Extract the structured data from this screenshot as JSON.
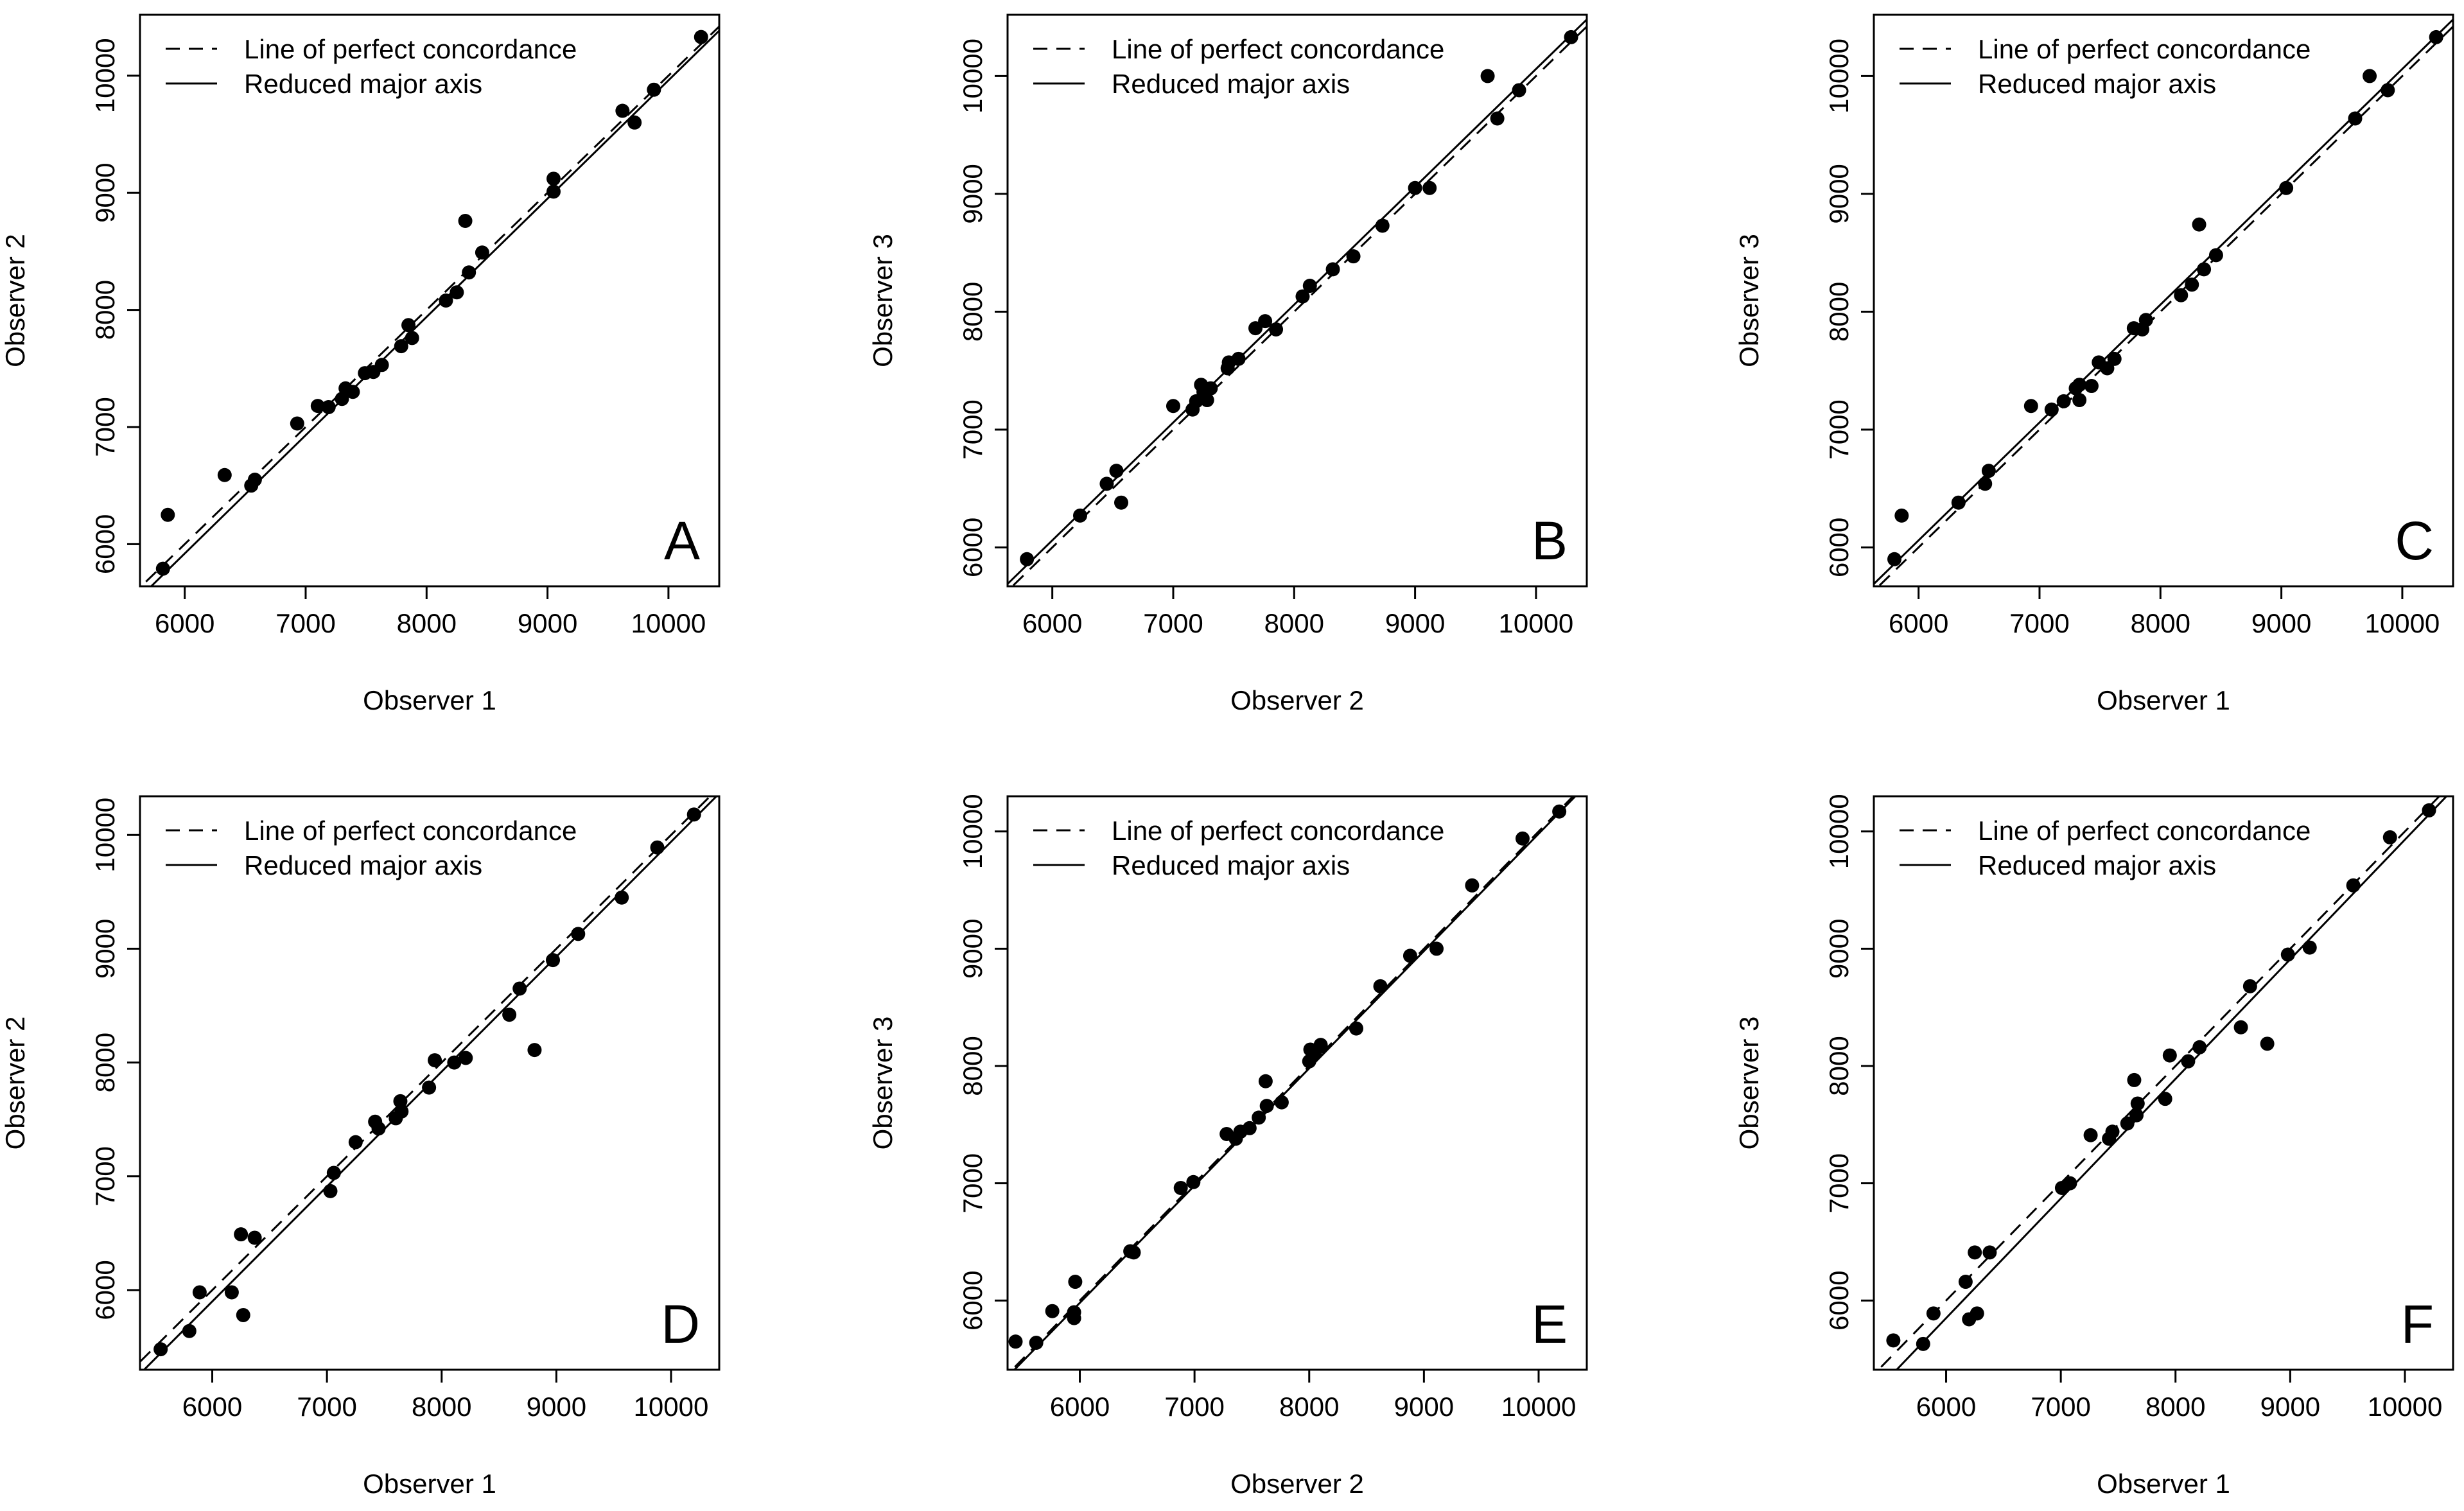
{
  "legend": {
    "concordance_label": "Line of perfect concordance",
    "rma_label": "Reduced major axis"
  },
  "chart_data": [
    {
      "type": "scatter",
      "panel": "A",
      "xlabel": "Observer 1",
      "ylabel": "Observer 2",
      "xlim": [
        5630,
        10420
      ],
      "ylim": [
        5640,
        10520
      ],
      "xticks": [
        6000,
        7000,
        8000,
        9000,
        10000
      ],
      "yticks": [
        6000,
        7000,
        8000,
        9000,
        10000
      ],
      "rma": {
        "slope": 1.01,
        "intercept": -140
      },
      "points": [
        [
          5820,
          5790
        ],
        [
          5860,
          6250
        ],
        [
          6330,
          6590
        ],
        [
          6550,
          6500
        ],
        [
          6580,
          6550
        ],
        [
          6930,
          7030
        ],
        [
          7100,
          7180
        ],
        [
          7190,
          7170
        ],
        [
          7300,
          7240
        ],
        [
          7330,
          7330
        ],
        [
          7390,
          7300
        ],
        [
          7490,
          7460
        ],
        [
          7560,
          7470
        ],
        [
          7630,
          7530
        ],
        [
          7790,
          7690
        ],
        [
          7850,
          7870
        ],
        [
          7880,
          7760
        ],
        [
          8160,
          8080
        ],
        [
          8250,
          8150
        ],
        [
          8320,
          8760
        ],
        [
          8350,
          8320
        ],
        [
          8460,
          8490
        ],
        [
          9050,
          9010
        ],
        [
          9050,
          9120
        ],
        [
          9620,
          9700
        ],
        [
          9720,
          9600
        ],
        [
          9880,
          9880
        ],
        [
          10270,
          10330
        ]
      ]
    },
    {
      "type": "scatter",
      "panel": "B",
      "xlabel": "Observer 2",
      "ylabel": "Observer 3",
      "xlim": [
        5630,
        10420
      ],
      "ylim": [
        5670,
        10520
      ],
      "xticks": [
        6000,
        7000,
        8000,
        9000,
        10000
      ],
      "yticks": [
        6000,
        7000,
        8000,
        9000,
        10000
      ],
      "rma": {
        "slope": 1.0,
        "intercept": 60
      },
      "points": [
        [
          5790,
          5900
        ],
        [
          6230,
          6270
        ],
        [
          6450,
          6540
        ],
        [
          6530,
          6650
        ],
        [
          6570,
          6380
        ],
        [
          7000,
          7200
        ],
        [
          7160,
          7170
        ],
        [
          7190,
          7240
        ],
        [
          7230,
          7380
        ],
        [
          7250,
          7320
        ],
        [
          7280,
          7250
        ],
        [
          7310,
          7350
        ],
        [
          7450,
          7520
        ],
        [
          7460,
          7570
        ],
        [
          7540,
          7600
        ],
        [
          7680,
          7860
        ],
        [
          7760,
          7920
        ],
        [
          7850,
          7850
        ],
        [
          8070,
          8130
        ],
        [
          8130,
          8220
        ],
        [
          8320,
          8360
        ],
        [
          8490,
          8470
        ],
        [
          8730,
          8730
        ],
        [
          9000,
          9050
        ],
        [
          9120,
          9050
        ],
        [
          9600,
          10000
        ],
        [
          9680,
          9640
        ],
        [
          9860,
          9880
        ],
        [
          10290,
          10330
        ]
      ]
    },
    {
      "type": "scatter",
      "panel": "C",
      "xlabel": "Observer 1",
      "ylabel": "Observer 3",
      "xlim": [
        5630,
        10420
      ],
      "ylim": [
        5670,
        10520
      ],
      "xticks": [
        6000,
        7000,
        8000,
        9000,
        10000
      ],
      "yticks": [
        6000,
        7000,
        8000,
        9000,
        10000
      ],
      "rma": {
        "slope": 1.0,
        "intercept": 60
      },
      "points": [
        [
          5800,
          5900
        ],
        [
          5860,
          6270
        ],
        [
          6330,
          6380
        ],
        [
          6550,
          6540
        ],
        [
          6580,
          6650
        ],
        [
          6930,
          7200
        ],
        [
          7100,
          7170
        ],
        [
          7200,
          7240
        ],
        [
          7300,
          7350
        ],
        [
          7330,
          7250
        ],
        [
          7330,
          7380
        ],
        [
          7430,
          7370
        ],
        [
          7490,
          7570
        ],
        [
          7560,
          7520
        ],
        [
          7620,
          7600
        ],
        [
          7780,
          7860
        ],
        [
          7850,
          7850
        ],
        [
          7880,
          7930
        ],
        [
          8170,
          8140
        ],
        [
          8260,
          8230
        ],
        [
          8320,
          8740
        ],
        [
          8360,
          8360
        ],
        [
          8460,
          8480
        ],
        [
          9040,
          9050
        ],
        [
          9610,
          9640
        ],
        [
          9730,
          10000
        ],
        [
          9880,
          9880
        ],
        [
          10280,
          10330
        ]
      ]
    },
    {
      "type": "scatter",
      "panel": "D",
      "xlabel": "Observer 1",
      "ylabel": "Observer 2",
      "xlim": [
        5370,
        10420
      ],
      "ylim": [
        5300,
        10340
      ],
      "xticks": [
        6000,
        7000,
        8000,
        9000,
        10000
      ],
      "yticks": [
        6000,
        7000,
        8000,
        9000,
        10000
      ],
      "rma": {
        "slope": 1.01,
        "intercept": -160
      },
      "points": [
        [
          5550,
          5480
        ],
        [
          5800,
          5640
        ],
        [
          5890,
          5980
        ],
        [
          6170,
          5980
        ],
        [
          6250,
          6490
        ],
        [
          6270,
          5780
        ],
        [
          6370,
          6460
        ],
        [
          7030,
          6870
        ],
        [
          7060,
          7030
        ],
        [
          7250,
          7300
        ],
        [
          7420,
          7480
        ],
        [
          7450,
          7420
        ],
        [
          7600,
          7510
        ],
        [
          7640,
          7660
        ],
        [
          7650,
          7570
        ],
        [
          7890,
          7780
        ],
        [
          7940,
          8020
        ],
        [
          8110,
          8000
        ],
        [
          8210,
          8040
        ],
        [
          8590,
          8420
        ],
        [
          8680,
          8650
        ],
        [
          8810,
          8110
        ],
        [
          8970,
          8900
        ],
        [
          9190,
          9130
        ],
        [
          9570,
          9450
        ],
        [
          9880,
          9890
        ],
        [
          10200,
          10180
        ]
      ]
    },
    {
      "type": "scatter",
      "panel": "E",
      "xlabel": "Observer 2",
      "ylabel": "Observer 3",
      "xlim": [
        5370,
        10420
      ],
      "ylim": [
        5410,
        10300
      ],
      "xticks": [
        6000,
        7000,
        8000,
        9000,
        10000
      ],
      "yticks": [
        6000,
        7000,
        8000,
        9000,
        10000
      ],
      "rma": {
        "slope": 1.0,
        "intercept": -20
      },
      "points": [
        [
          5440,
          5650
        ],
        [
          5620,
          5640
        ],
        [
          5760,
          5910
        ],
        [
          5950,
          5850
        ],
        [
          5950,
          5900
        ],
        [
          5960,
          6160
        ],
        [
          6440,
          6420
        ],
        [
          6470,
          6410
        ],
        [
          6880,
          6960
        ],
        [
          6990,
          7010
        ],
        [
          7280,
          7420
        ],
        [
          7360,
          7380
        ],
        [
          7400,
          7440
        ],
        [
          7480,
          7470
        ],
        [
          7560,
          7560
        ],
        [
          7620,
          7870
        ],
        [
          7630,
          7660
        ],
        [
          7760,
          7690
        ],
        [
          8000,
          8040
        ],
        [
          8010,
          8140
        ],
        [
          8050,
          8110
        ],
        [
          8100,
          8180
        ],
        [
          8410,
          8320
        ],
        [
          8620,
          8680
        ],
        [
          8880,
          8940
        ],
        [
          9110,
          9000
        ],
        [
          9420,
          9540
        ],
        [
          9860,
          9940
        ],
        [
          10180,
          10170
        ]
      ]
    },
    {
      "type": "scatter",
      "panel": "F",
      "xlabel": "Observer 1",
      "ylabel": "Observer 3",
      "xlim": [
        5370,
        10420
      ],
      "ylim": [
        5410,
        10300
      ],
      "xticks": [
        6000,
        7000,
        8000,
        9000,
        10000
      ],
      "yticks": [
        6000,
        7000,
        8000,
        9000,
        10000
      ],
      "rma": {
        "slope": 1.02,
        "intercept": -270
      },
      "points": [
        [
          5540,
          5660
        ],
        [
          5800,
          5630
        ],
        [
          5890,
          5890
        ],
        [
          6170,
          6160
        ],
        [
          6200,
          5840
        ],
        [
          6250,
          6410
        ],
        [
          6270,
          5890
        ],
        [
          6380,
          6410
        ],
        [
          7010,
          6960
        ],
        [
          7080,
          7000
        ],
        [
          7260,
          7410
        ],
        [
          7420,
          7380
        ],
        [
          7450,
          7440
        ],
        [
          7580,
          7510
        ],
        [
          7640,
          7880
        ],
        [
          7660,
          7580
        ],
        [
          7670,
          7680
        ],
        [
          7910,
          7720
        ],
        [
          7950,
          8090
        ],
        [
          8110,
          8040
        ],
        [
          8210,
          8160
        ],
        [
          8570,
          8330
        ],
        [
          8650,
          8680
        ],
        [
          8800,
          8190
        ],
        [
          8980,
          8950
        ],
        [
          9170,
          9010
        ],
        [
          9550,
          9540
        ],
        [
          9870,
          9950
        ],
        [
          10210,
          10180
        ]
      ]
    }
  ]
}
